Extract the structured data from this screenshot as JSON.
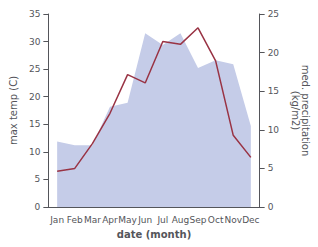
{
  "chart_data": {
    "type": "line",
    "categories": [
      "Jan",
      "Feb",
      "Mar",
      "Apr",
      "May",
      "Jun",
      "Jul",
      "Aug",
      "Sep",
      "Oct",
      "Nov",
      "Dec"
    ],
    "xlabel": "date (month)",
    "ylabel": "max temp (C)",
    "y2label": "med. precipitation\n(kg/m2)",
    "ylim": [
      0,
      35
    ],
    "yticks": [
      0,
      5,
      10,
      15,
      20,
      25,
      30,
      35
    ],
    "y2lim": [
      0,
      25
    ],
    "y2ticks": [
      0,
      5,
      10,
      15,
      20,
      25
    ],
    "grid": false,
    "series": [
      {
        "type": "area",
        "color": "#c5cce8",
        "axis": "y2",
        "values": [
          8.5,
          8.0,
          8.0,
          13.0,
          13.5,
          22.5,
          21.0,
          22.5,
          18.0,
          19.0,
          18.5,
          10.5
        ]
      },
      {
        "type": "line",
        "color": "#993344",
        "values": [
          6.5,
          7.0,
          11.5,
          17.0,
          24.0,
          22.5,
          30.0,
          29.5,
          32.5,
          26.5,
          13.0,
          9.0
        ]
      }
    ]
  }
}
